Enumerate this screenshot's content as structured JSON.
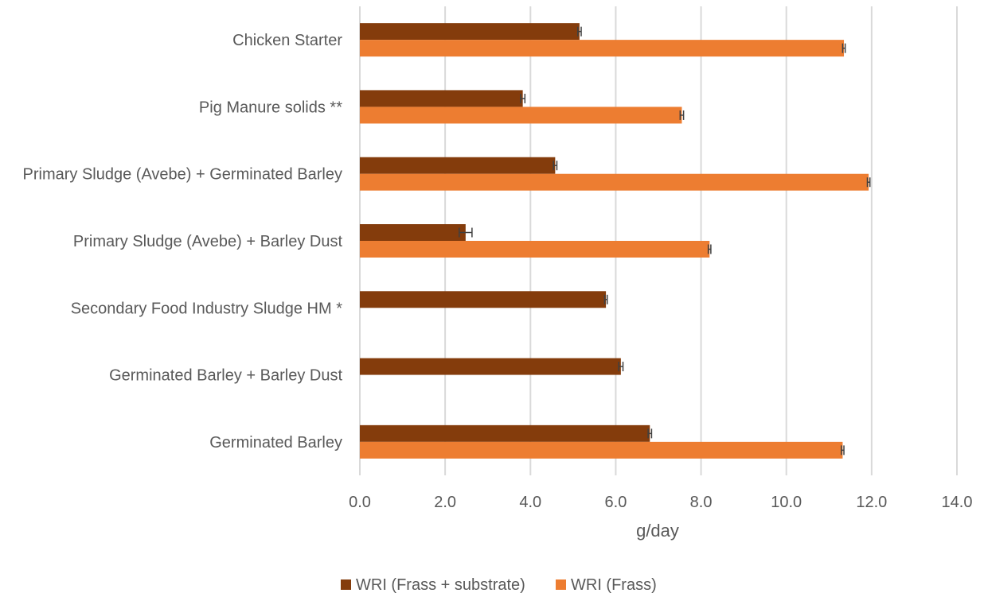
{
  "chart_data": {
    "type": "bar",
    "orientation": "horizontal",
    "title": "",
    "xlabel": "g/day",
    "ylabel": "",
    "xlim": [
      0,
      14
    ],
    "xticks": [
      "0.0",
      "2.0",
      "4.0",
      "6.0",
      "8.0",
      "10.0",
      "12.0",
      "14.0"
    ],
    "grid": true,
    "legend_position": "bottom",
    "categories": [
      "Chicken Starter",
      "Pig Manure solids **",
      "Primary Sludge (Avebe) + Germinated Barley",
      "Primary Sludge (Avebe) + Barley Dust",
      "Secondary Food Industry Sludge HM *",
      "Germinated Barley + Barley Dust",
      "Germinated Barley"
    ],
    "series": [
      {
        "name": "WRI (Frass + substrate)",
        "color": "#843C0C",
        "values": [
          5.15,
          3.82,
          4.58,
          2.48,
          5.77,
          6.12,
          6.8
        ],
        "errors": [
          0.04,
          0.05,
          0.04,
          0.15,
          0.03,
          0.05,
          0.04
        ]
      },
      {
        "name": "WRI (Frass)",
        "color": "#ED7D31",
        "values": [
          11.35,
          7.55,
          11.93,
          8.2,
          null,
          null,
          11.32
        ],
        "errors": [
          0.03,
          0.04,
          0.03,
          0.03,
          null,
          null,
          0.03
        ]
      }
    ]
  }
}
